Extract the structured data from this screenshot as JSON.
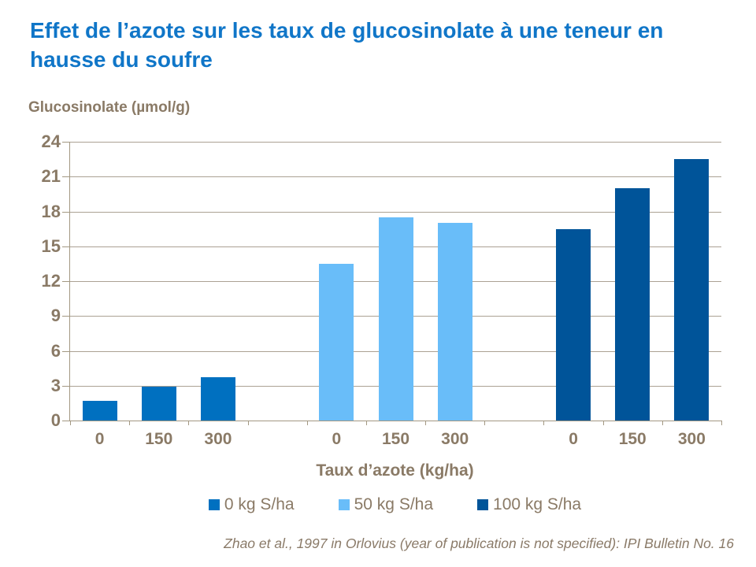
{
  "title": "Effet de l’azote sur les taux de glucosinolate à une teneur en hausse du soufre",
  "colors": {
    "title_blue": "#1076C8",
    "axis_text_brown": "#8A7A66",
    "gridline": "#ABA193",
    "axis_line": "#A39882",
    "series_0kg": "#0070C0",
    "series_50kg": "#69BDF9",
    "series_100kg": "#005499"
  },
  "chart_data": {
    "type": "bar",
    "title": "Effet de l’azote sur les taux de glucosinolate à une teneur en hausse du soufre",
    "ylabel": "Glucosinolate (µmol/g)",
    "xlabel": "Taux d’azote (kg/ha)",
    "categories": [
      "0",
      "150",
      "300"
    ],
    "series": [
      {
        "name": "0 kg S/ha",
        "color": "#0070C0",
        "values": [
          1.7,
          2.9,
          3.7
        ]
      },
      {
        "name": "50 kg S/ha",
        "color": "#69BDF9",
        "values": [
          13.5,
          17.5,
          17.0
        ]
      },
      {
        "name": "100 kg S/ha",
        "color": "#005499",
        "values": [
          16.5,
          20.0,
          22.5
        ]
      }
    ],
    "ylim": [
      0,
      24
    ],
    "ytick_step": 3,
    "yticks": [
      0,
      3,
      6,
      9,
      12,
      15,
      18,
      21,
      24
    ],
    "grid": true,
    "legend_position": "bottom"
  },
  "footer": {
    "source": "Zhao et al., 1997 in Orlovius (year of publication is not specified): IPI Bulletin No. 16"
  }
}
